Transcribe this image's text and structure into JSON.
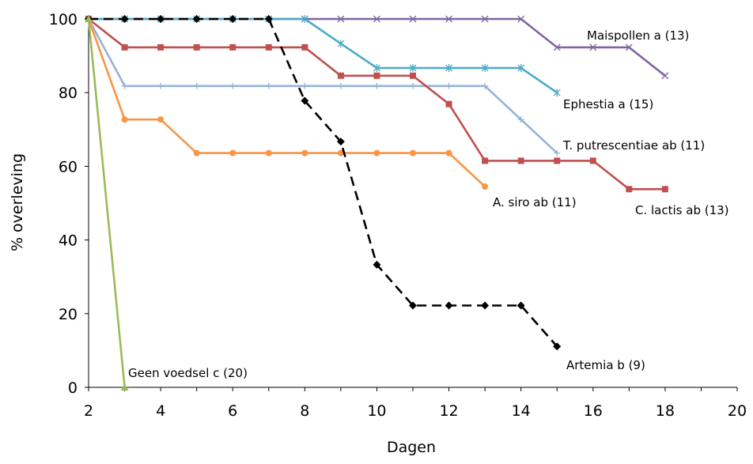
{
  "chart_data": {
    "type": "line",
    "title": "",
    "xlabel": "Dagen",
    "ylabel": "% overleving",
    "xlim": [
      2,
      20
    ],
    "ylim": [
      0,
      100
    ],
    "xticks": [
      2,
      4,
      6,
      8,
      10,
      12,
      14,
      16,
      18,
      20
    ],
    "yticks": [
      0,
      20,
      40,
      60,
      80,
      100
    ],
    "grid": false,
    "legend": "none",
    "series": [
      {
        "name": "Maispollen a (13)",
        "color": "#8064a2",
        "marker": "x",
        "dash": "solid",
        "x": [
          2,
          3,
          4,
          5,
          6,
          7,
          8,
          9,
          10,
          11,
          12,
          13,
          14,
          15,
          16,
          17,
          18
        ],
        "y": [
          100,
          100,
          100,
          100,
          100,
          100,
          100,
          100,
          100,
          100,
          100,
          100,
          100,
          92.3,
          92.3,
          92.3,
          84.6
        ]
      },
      {
        "name": "Ephestia a (15)",
        "color": "#4bacc6",
        "marker": "asterisk",
        "dash": "solid",
        "x": [
          2,
          3,
          4,
          5,
          6,
          7,
          8,
          9,
          10,
          11,
          12,
          13,
          14,
          15
        ],
        "y": [
          100,
          100,
          100,
          100,
          100,
          100,
          100,
          93.3,
          86.7,
          86.7,
          86.7,
          86.7,
          86.7,
          80
        ]
      },
      {
        "name": "T. putrescentiae ab (11)",
        "color": "#95b3d7",
        "marker": "plus",
        "dash": "solid",
        "x": [
          2,
          3,
          4,
          5,
          6,
          7,
          8,
          9,
          10,
          11,
          12,
          13,
          14,
          15
        ],
        "y": [
          100,
          81.8,
          81.8,
          81.8,
          81.8,
          81.8,
          81.8,
          81.8,
          81.8,
          81.8,
          81.8,
          81.8,
          72.7,
          63.6
        ]
      },
      {
        "name": "C. lactis ab (13)",
        "color": "#c0504d",
        "marker": "square",
        "dash": "solid",
        "x": [
          2,
          3,
          4,
          5,
          6,
          7,
          8,
          9,
          10,
          11,
          12,
          13,
          14,
          15,
          16,
          17,
          18
        ],
        "y": [
          100,
          92.3,
          92.3,
          92.3,
          92.3,
          92.3,
          92.3,
          84.6,
          84.6,
          84.6,
          76.9,
          61.5,
          61.5,
          61.5,
          61.5,
          53.8,
          53.8
        ]
      },
      {
        "name": "A. siro ab (11)",
        "color": "#f79646",
        "marker": "circle",
        "dash": "solid",
        "x": [
          2,
          3,
          4,
          5,
          6,
          7,
          8,
          9,
          10,
          11,
          12,
          13
        ],
        "y": [
          100,
          72.7,
          72.7,
          63.6,
          63.6,
          63.6,
          63.6,
          63.6,
          63.6,
          63.6,
          63.6,
          54.5
        ]
      },
      {
        "name": "Artemia b (9)",
        "color": "#000000",
        "marker": "diamond",
        "dash": "dashed",
        "x": [
          2,
          3,
          4,
          5,
          6,
          7,
          8,
          9,
          10,
          11,
          12,
          13,
          14,
          15
        ],
        "y": [
          100,
          100,
          100,
          100,
          100,
          100,
          77.8,
          66.7,
          33.3,
          22.2,
          22.2,
          22.2,
          22.2,
          11.1
        ]
      },
      {
        "name": "Geen voedsel c (20)",
        "color": "#9bbb59",
        "marker": "triangle",
        "dash": "solid",
        "x": [
          2,
          3
        ],
        "y": [
          100,
          0
        ]
      }
    ]
  }
}
